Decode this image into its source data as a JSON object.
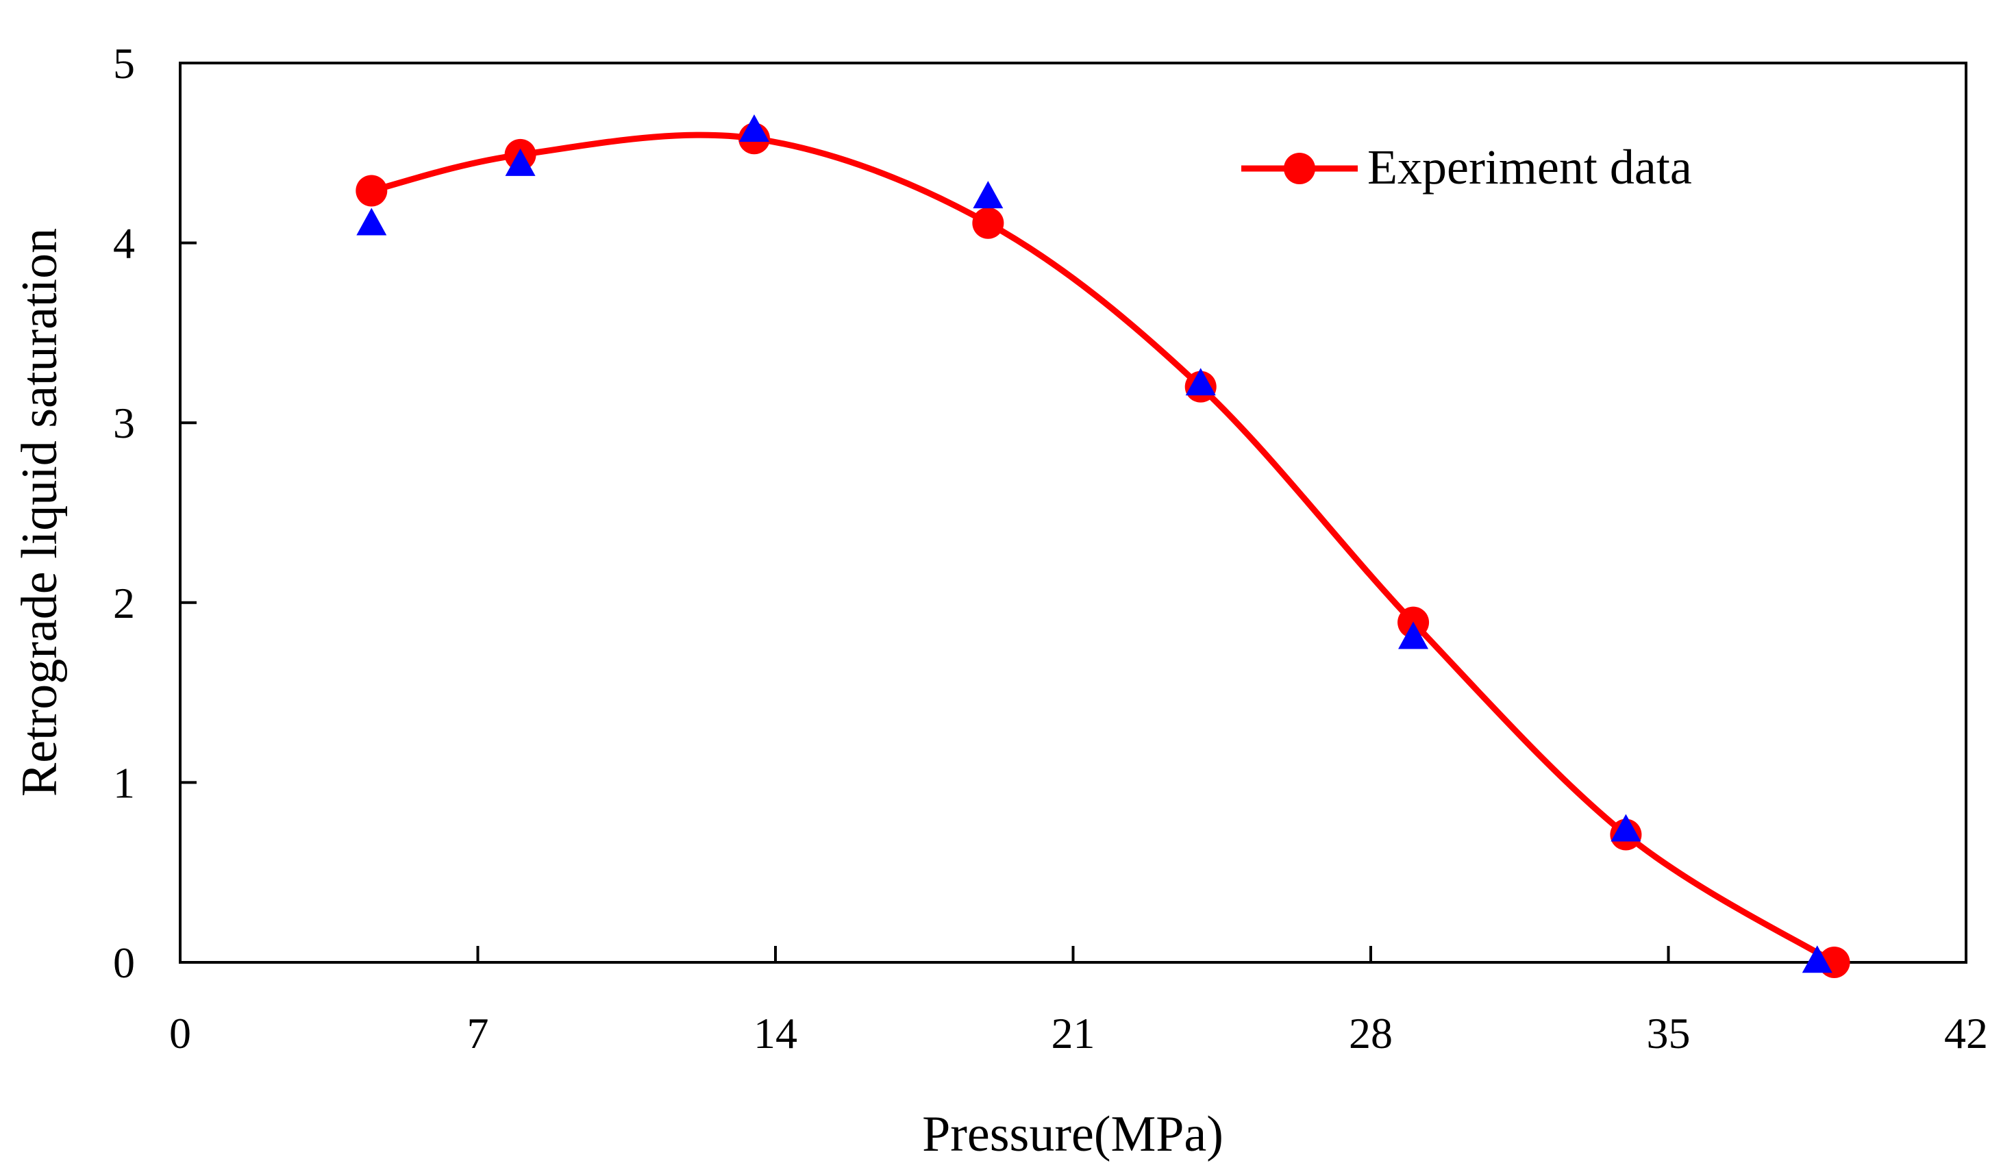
{
  "chart_data": {
    "type": "line",
    "title": "",
    "xlabel": "Pressure(MPa)",
    "ylabel": "Retrograde liquid saturation",
    "xlim": [
      0,
      42
    ],
    "ylim": [
      0,
      5
    ],
    "x_ticks": [
      0,
      7,
      14,
      21,
      28,
      35,
      42
    ],
    "y_ticks": [
      0,
      1,
      2,
      3,
      4,
      5
    ],
    "x_tick_labels": [
      "0",
      "7",
      "14",
      "21",
      "28",
      "35",
      "42"
    ],
    "y_tick_labels": [
      "0",
      "1",
      "2",
      "3",
      "4",
      "5"
    ],
    "grid": false,
    "legend": {
      "position": "top-right",
      "entries": [
        "Experiment data"
      ]
    },
    "series": [
      {
        "name": "Experiment data",
        "marker": "circle",
        "color": "#ff0000",
        "smooth": true,
        "x": [
          4.5,
          8.0,
          13.5,
          19.0,
          24.0,
          29.0,
          34.0,
          38.9
        ],
        "y": [
          4.29,
          4.49,
          4.58,
          4.11,
          3.2,
          1.89,
          0.71,
          0.0
        ]
      },
      {
        "name": "",
        "marker": "triangle",
        "color": "#0000ff",
        "x": [
          4.5,
          8.0,
          13.5,
          19.0,
          24.0,
          29.0,
          34.0,
          38.5
        ],
        "y": [
          4.1,
          4.43,
          4.62,
          4.25,
          3.21,
          1.8,
          0.73,
          0.0
        ]
      }
    ]
  }
}
